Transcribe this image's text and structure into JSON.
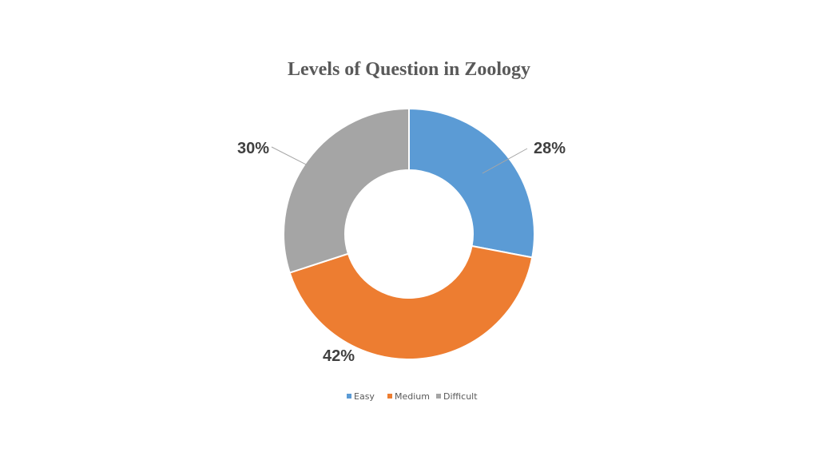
{
  "chart_data": {
    "type": "pie",
    "variant": "donut",
    "title": "Levels of Question in Zoology",
    "categories": [
      "Easy",
      "Medium",
      "Difficult"
    ],
    "values": [
      28,
      42,
      30
    ],
    "data_labels": [
      "28%",
      "42%",
      "30%"
    ],
    "colors": [
      "#5B9BD5",
      "#ED7D31",
      "#A5A5A5"
    ],
    "legend": {
      "position": "bottom",
      "entries": [
        "Easy",
        "Medium",
        "Difficult"
      ]
    }
  }
}
